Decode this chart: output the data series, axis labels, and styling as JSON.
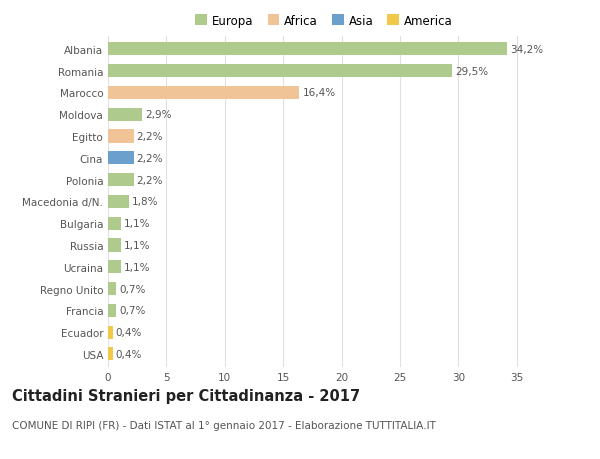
{
  "countries": [
    "Albania",
    "Romania",
    "Marocco",
    "Moldova",
    "Egitto",
    "Cina",
    "Polonia",
    "Macedonia d/N.",
    "Bulgaria",
    "Russia",
    "Ucraina",
    "Regno Unito",
    "Francia",
    "Ecuador",
    "USA"
  ],
  "values": [
    34.2,
    29.5,
    16.4,
    2.9,
    2.2,
    2.2,
    2.2,
    1.8,
    1.1,
    1.1,
    1.1,
    0.7,
    0.7,
    0.4,
    0.4
  ],
  "labels": [
    "34,2%",
    "29,5%",
    "16,4%",
    "2,9%",
    "2,2%",
    "2,2%",
    "2,2%",
    "1,8%",
    "1,1%",
    "1,1%",
    "1,1%",
    "0,7%",
    "0,7%",
    "0,4%",
    "0,4%"
  ],
  "continents": [
    "Europa",
    "Europa",
    "Africa",
    "Europa",
    "Africa",
    "Asia",
    "Europa",
    "Europa",
    "Europa",
    "Europa",
    "Europa",
    "Europa",
    "Europa",
    "America",
    "America"
  ],
  "colors": {
    "Europa": "#aeca8c",
    "Africa": "#f0c497",
    "Asia": "#6b9fcc",
    "America": "#f0c84a"
  },
  "title": "Cittadini Stranieri per Cittadinanza - 2017",
  "subtitle": "COMUNE DI RIPI (FR) - Dati ISTAT al 1° gennaio 2017 - Elaborazione TUTTITALIA.IT",
  "xlim": [
    0,
    37
  ],
  "xticks": [
    0,
    5,
    10,
    15,
    20,
    25,
    30,
    35
  ],
  "background_color": "#ffffff",
  "grid_color": "#e0e0e0",
  "bar_height": 0.6,
  "label_fontsize": 7.5,
  "title_fontsize": 10.5,
  "subtitle_fontsize": 7.5,
  "tick_fontsize": 7.5,
  "legend_fontsize": 8.5
}
